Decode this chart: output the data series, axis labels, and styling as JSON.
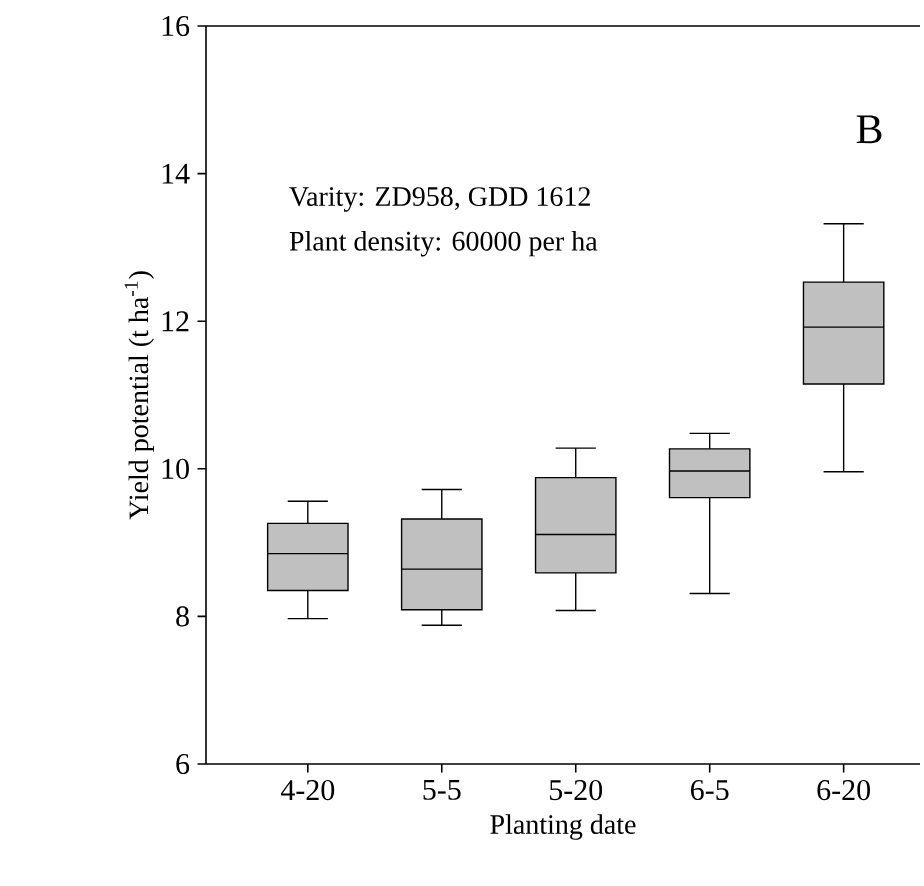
{
  "chart_data": {
    "type": "box",
    "xlabel": "Planting date",
    "ylabel": "Yield potential (t ha$^{-1}$)",
    "annotations": [
      "B",
      "Varity: ZD958, GDD 1612",
      "Plant density: 60000 per ha"
    ],
    "categories": [
      "4-20",
      "5-5",
      "5-20",
      "6-5",
      "6-20"
    ],
    "color": "#c0c0c0",
    "ylim": [
      6,
      16
    ],
    "yticks": [
      6,
      8,
      10,
      12,
      14,
      16
    ],
    "boxes": [
      {
        "low": 7.97,
        "q1": 8.35,
        "median": 8.85,
        "q3": 9.26,
        "high": 9.56
      },
      {
        "low": 7.88,
        "q1": 8.09,
        "median": 8.64,
        "q3": 9.32,
        "high": 9.72
      },
      {
        "low": 8.08,
        "q1": 8.59,
        "median": 9.11,
        "q3": 9.88,
        "high": 10.28
      },
      {
        "low": 8.31,
        "q1": 9.61,
        "median": 9.97,
        "q3": 10.27,
        "high": 10.48
      },
      {
        "low": 9.96,
        "q1": 11.15,
        "median": 11.92,
        "q3": 12.53,
        "high": 13.32
      }
    ]
  }
}
